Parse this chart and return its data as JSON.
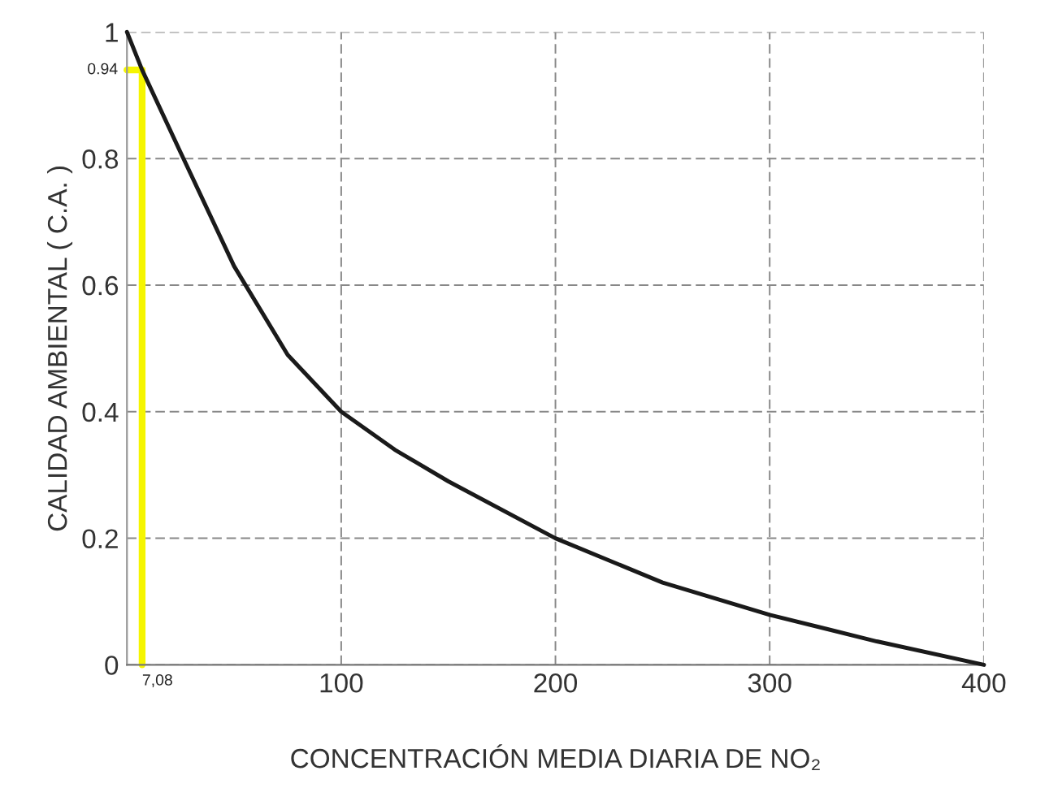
{
  "chart_data": {
    "type": "line",
    "xlabel": "CONCENTRACIÓN MEDIA DIARIA DE NO₂",
    "ylabel": "CALIDAD AMBIENTAL ( C.A. )",
    "series": [
      {
        "color": "#1a1a1a",
        "x": [
          0,
          7.08,
          25,
          50,
          75,
          100,
          125,
          150,
          200,
          250,
          300,
          350,
          400
        ],
        "values": [
          1,
          0.94,
          0.81,
          0.63,
          0.49,
          0.4,
          0.34,
          0.29,
          0.2,
          0.13,
          0.079,
          0.037,
          0
        ]
      },
      {
        "color": "#f5f500",
        "x": [
          0,
          7.08
        ],
        "values": [
          0.94,
          0.94
        ]
      },
      {
        "color": "#f5f500",
        "x": [
          7.08,
          7.08
        ],
        "values": [
          0.94,
          0
        ]
      }
    ],
    "annotations": [
      {
        "text": "7,08",
        "x": 7.08,
        "y": 0
      },
      {
        "text": "0.94",
        "x": 0,
        "y": 0.94
      }
    ],
    "xlim": [
      0,
      400
    ],
    "ylim": [
      0,
      1
    ],
    "xticks": [
      100,
      200,
      300,
      400
    ],
    "yticks": [
      0,
      0.2,
      0.4,
      0.6,
      0.8,
      1
    ],
    "grid": true,
    "marker": "none",
    "line_style": "solid"
  }
}
